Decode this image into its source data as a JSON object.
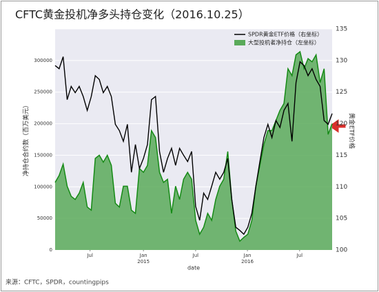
{
  "chart_data": {
    "type": "line_area",
    "title": "CFTC黄金投机净多头持仓变化（2016.10.25）",
    "source": "来源：CFTC，SPDR，countingpips",
    "x_label": "date",
    "y_label": "净持仓合约数（百万美元）",
    "y2_label": "黄金ETF价格",
    "ylim": [
      0,
      350000
    ],
    "yticks": [
      0,
      50000,
      100000,
      150000,
      200000,
      250000,
      300000
    ],
    "y2lim": [
      100,
      135
    ],
    "y2ticks": [
      100,
      105,
      110,
      115,
      120,
      125,
      130,
      135
    ],
    "xlim": [
      0,
      69
    ],
    "xticks": [
      {
        "value": 8.7,
        "label": "Jul"
      },
      {
        "value": 22,
        "label": "Jan\n2015"
      },
      {
        "value": 35,
        "label": "Jul"
      },
      {
        "value": 47.9,
        "label": "Jan\n2016"
      },
      {
        "value": 60.9,
        "label": "Jul"
      }
    ],
    "grid": true,
    "legend": "upper right",
    "series": [
      {
        "name": "SPDR黄金ETF价格（右坐标）",
        "color": "#000000",
        "axis": "y2",
        "kind": "line",
        "values": [
          129.2,
          128.7,
          130.6,
          123.8,
          125.9,
          124.9,
          125.9,
          124.3,
          122.1,
          124.3,
          127.6,
          127.0,
          124.9,
          125.9,
          124.3,
          119.9,
          118.9,
          117.2,
          119.9,
          112.3,
          116.7,
          112.9,
          114.5,
          116.7,
          123.8,
          124.3,
          115.6,
          112.3,
          114.5,
          116.1,
          113.4,
          116.1,
          115.0,
          114.0,
          115.6,
          106.9,
          104.7,
          109.0,
          108.0,
          110.1,
          112.3,
          111.2,
          112.3,
          114.5,
          108.0,
          103.6,
          103.1,
          102.5,
          103.6,
          105.8,
          110.1,
          114.0,
          117.8,
          119.9,
          117.8,
          120.5,
          119.4,
          122.1,
          123.2,
          117.2,
          126.5,
          129.8,
          129.2,
          127.6,
          128.7,
          127.0,
          125.9,
          120.5,
          119.9,
          121.6
        ]
      },
      {
        "name": "大型投机者净持仓（左坐标）",
        "color": "#5aaa5a",
        "axis": "y",
        "kind": "area",
        "values": [
          107000,
          118000,
          136000,
          101000,
          85000,
          80000,
          90000,
          107000,
          68000,
          63000,
          145000,
          150000,
          139000,
          150000,
          134000,
          74000,
          68000,
          101000,
          101000,
          63000,
          58000,
          129000,
          123000,
          134000,
          189000,
          178000,
          123000,
          107000,
          112000,
          58000,
          101000,
          80000,
          112000,
          123000,
          112000,
          47000,
          25000,
          36000,
          58000,
          47000,
          80000,
          101000,
          112000,
          156000,
          80000,
          30000,
          14000,
          20000,
          25000,
          47000,
          101000,
          134000,
          167000,
          189000,
          189000,
          205000,
          221000,
          232000,
          287000,
          276000,
          309000,
          314000,
          287000,
          303000,
          298000,
          309000,
          265000,
          287000,
          183000,
          200000
        ]
      }
    ]
  }
}
